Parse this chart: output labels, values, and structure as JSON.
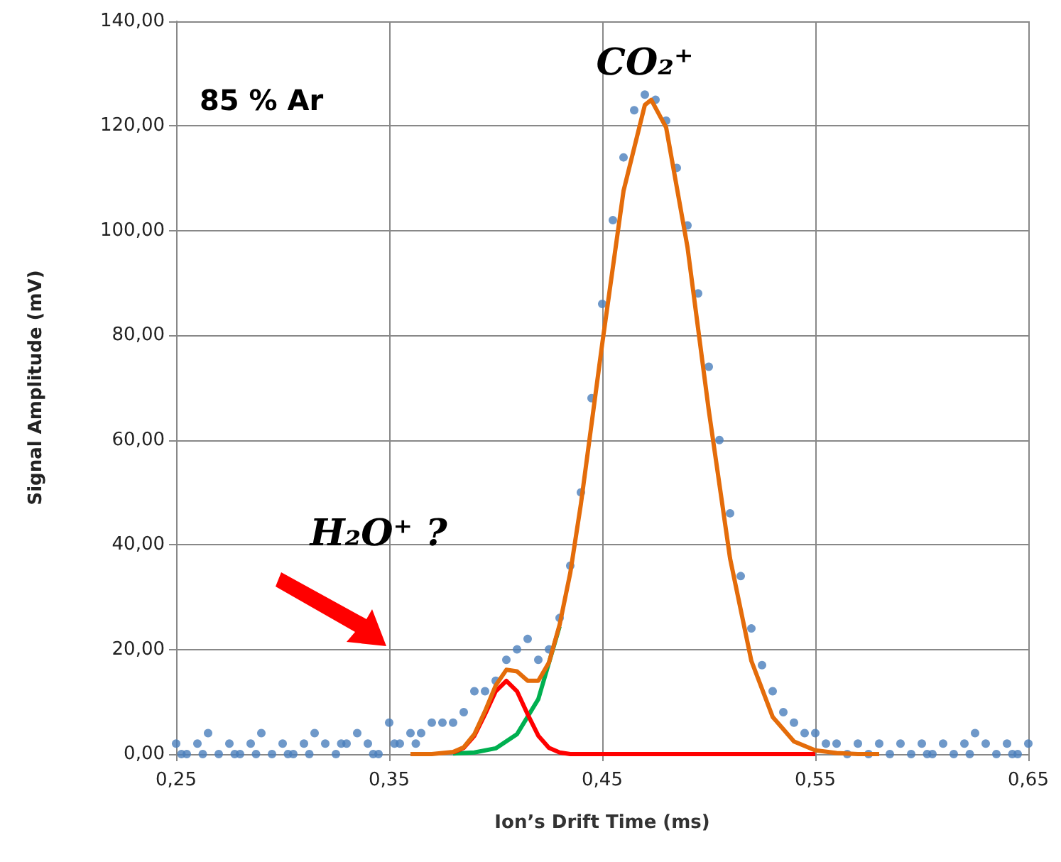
{
  "chart_data": {
    "type": "scatter",
    "xlabel": "Ion’s Drift Time (ms)",
    "ylabel": "Signal Amplitude (mV)",
    "xlim": [
      0.25,
      0.65
    ],
    "xticks": [
      {
        "value": 0.25,
        "label": "0,25"
      },
      {
        "value": 0.35,
        "label": "0,35"
      },
      {
        "value": 0.45,
        "label": "0,45"
      },
      {
        "value": 0.55,
        "label": "0,55"
      },
      {
        "value": 0.65,
        "label": "0,65"
      }
    ],
    "ylim": [
      0,
      140
    ],
    "yticks": [
      {
        "value": 0,
        "label": "0,00"
      },
      {
        "value": 20,
        "label": "20,00"
      },
      {
        "value": 40,
        "label": "40,00"
      },
      {
        "value": 60,
        "label": "60,00"
      },
      {
        "value": 80,
        "label": "80,00"
      },
      {
        "value": 100,
        "label": "100,00"
      },
      {
        "value": 120,
        "label": "120,00"
      },
      {
        "value": 140,
        "label": "140,00"
      }
    ],
    "grid": true,
    "annotations": [
      "85 % Ar",
      "CO₂⁺",
      "H₂O⁺ ?"
    ],
    "series": [
      {
        "marker": "circle",
        "color": "#4a7ebb",
        "x": [
          0.25,
          0.2525,
          0.255,
          0.26,
          0.2625,
          0.265,
          0.27,
          0.275,
          0.2775,
          0.28,
          0.285,
          0.2875,
          0.29,
          0.295,
          0.3,
          0.3025,
          0.305,
          0.31,
          0.3125,
          0.315,
          0.32,
          0.325,
          0.3275,
          0.33,
          0.335,
          0.34,
          0.3425,
          0.345,
          0.35,
          0.3525,
          0.355,
          0.36,
          0.3625,
          0.365,
          0.37,
          0.375,
          0.38,
          0.385,
          0.39,
          0.395,
          0.4,
          0.405,
          0.41,
          0.415,
          0.42,
          0.425,
          0.43,
          0.435,
          0.44,
          0.445,
          0.45,
          0.455,
          0.46,
          0.465,
          0.47,
          0.475,
          0.48,
          0.485,
          0.49,
          0.495,
          0.5,
          0.505,
          0.51,
          0.515,
          0.52,
          0.525,
          0.53,
          0.535,
          0.54,
          0.545,
          0.55,
          0.555,
          0.56,
          0.565,
          0.57,
          0.575,
          0.58,
          0.585,
          0.59,
          0.595,
          0.6,
          0.6025,
          0.605,
          0.61,
          0.615,
          0.62,
          0.6225,
          0.625,
          0.63,
          0.635,
          0.64,
          0.6425,
          0.645,
          0.65
        ],
        "values": [
          2,
          0,
          0,
          2,
          0,
          4,
          0,
          2,
          0,
          0,
          2,
          0,
          4,
          0,
          2,
          0,
          0,
          2,
          0,
          4,
          2,
          0,
          2,
          2,
          4,
          2,
          0,
          0,
          6,
          2,
          2,
          4,
          2,
          4,
          6,
          6,
          6,
          8,
          12,
          12,
          14,
          18,
          20,
          22,
          18,
          20,
          26,
          36,
          50,
          68,
          86,
          102,
          114,
          123,
          126,
          125,
          121,
          112,
          101,
          88,
          74,
          60,
          46,
          34,
          24,
          17,
          12,
          8,
          6,
          4,
          4,
          2,
          2,
          0,
          2,
          0,
          2,
          0,
          2,
          0,
          2,
          0,
          0,
          2,
          0,
          2,
          0,
          4,
          2,
          0,
          2,
          0,
          0,
          2
        ]
      },
      {
        "type": "line",
        "marker": "none",
        "color": "#00b050",
        "x": [
          0.38,
          0.39,
          0.4,
          0.41,
          0.42,
          0.43
        ],
        "values": [
          0.1,
          0.3,
          1.1,
          3.8,
          10.5,
          24.4
        ]
      },
      {
        "type": "line",
        "marker": "none",
        "color": "#ff0000",
        "x": [
          0.38,
          0.385,
          0.39,
          0.395,
          0.4,
          0.405,
          0.41,
          0.415,
          0.42,
          0.425,
          0.43,
          0.435,
          0.44,
          0.5,
          0.55
        ],
        "values": [
          0.3,
          1.2,
          3.5,
          7.6,
          12.0,
          14.0,
          12.0,
          7.6,
          3.5,
          1.2,
          0.3,
          0,
          0,
          0,
          0
        ]
      },
      {
        "type": "line",
        "marker": "none",
        "color": "#e46c0a",
        "x": [
          0.36,
          0.37,
          0.38,
          0.385,
          0.39,
          0.395,
          0.4,
          0.405,
          0.41,
          0.415,
          0.42,
          0.425,
          0.43,
          0.435,
          0.44,
          0.45,
          0.46,
          0.47,
          0.473,
          0.48,
          0.49,
          0.5,
          0.51,
          0.52,
          0.53,
          0.54,
          0.55,
          0.56,
          0.57,
          0.58
        ],
        "values": [
          0,
          0,
          0.4,
          1.3,
          3.8,
          8.2,
          13.1,
          16.1,
          15.8,
          14.0,
          14.0,
          17.5,
          24.7,
          34.6,
          47.8,
          78.4,
          107.6,
          124.0,
          125.0,
          119.7,
          96.9,
          65.7,
          37.4,
          17.8,
          7.1,
          2.4,
          0.7,
          0.2,
          0,
          0
        ]
      }
    ]
  }
}
